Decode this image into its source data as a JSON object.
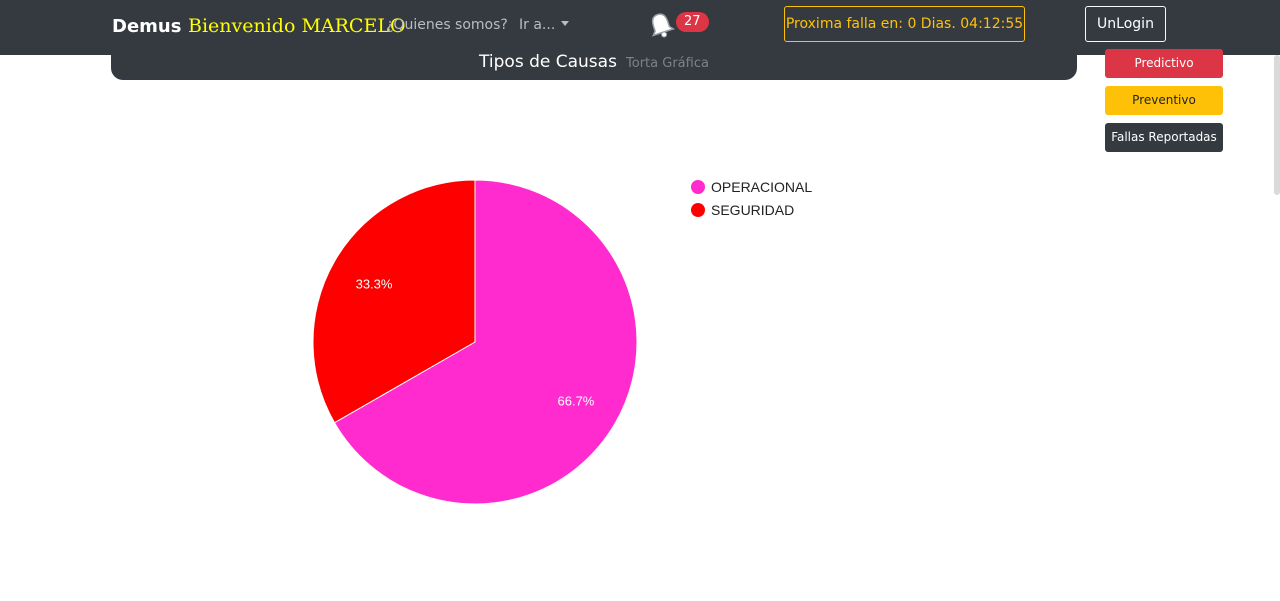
{
  "navbar": {
    "brand": "Demus",
    "welcome": "Bienvenido MARCELO",
    "about_link": "¿Quienes somos?",
    "goto_menu": "Ir a...",
    "notification_count": "27",
    "countdown": "Proxima falla en: 0 Dias. 04:12:55",
    "logout_label": "UnLogin"
  },
  "card": {
    "title": "Tipos de Causas",
    "subtitle": "Torta Gráfica"
  },
  "side_buttons": {
    "predictive": "Predictivo",
    "preventive": "Preventivo",
    "reported": "Fallas Reportadas"
  },
  "colors": {
    "navbar": "#343a40",
    "operacional": "#ff2bcf",
    "seguridad": "#ff0000",
    "danger": "#dc3545",
    "warning": "#ffc107"
  },
  "icons": {
    "bell": "bell-icon"
  },
  "chart_data": {
    "type": "pie",
    "categories": [
      "OPERACIONAL",
      "SEGURIDAD"
    ],
    "values": [
      66.7,
      33.3
    ],
    "labels": [
      "66.7%",
      "33.3%"
    ],
    "colors": [
      "#ff2bcf",
      "#ff0000"
    ],
    "legend_position": "right"
  }
}
